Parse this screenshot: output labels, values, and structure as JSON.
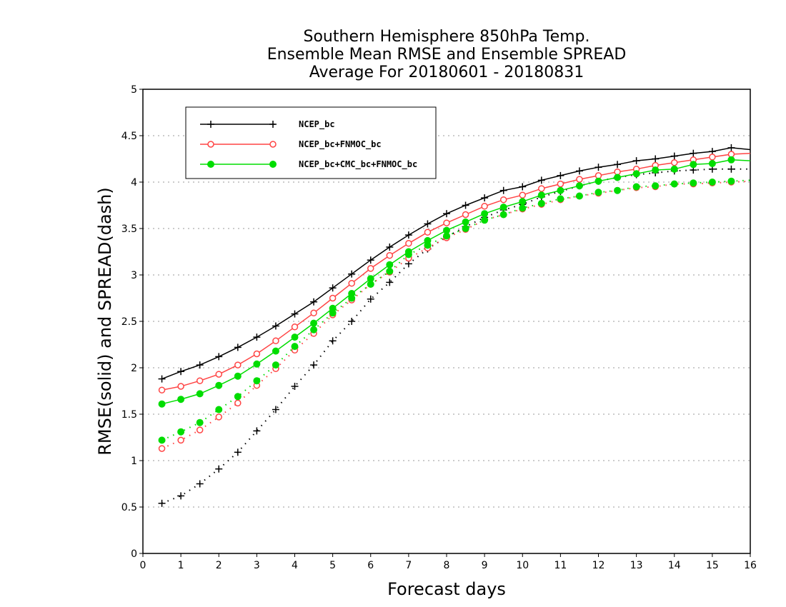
{
  "chart_data": {
    "type": "line",
    "title": [
      "Southern Hemisphere 850hPa Temp.",
      "Ensemble Mean RMSE and Ensemble SPREAD",
      "Average For 20180601 - 20180831"
    ],
    "xlabel": "Forecast days",
    "ylabel": "RMSE(solid) and SPREAD(dash)",
    "xlim": [
      0,
      16
    ],
    "ylim": [
      0,
      5
    ],
    "xticks": [
      "0",
      "1",
      "2",
      "3",
      "4",
      "5",
      "6",
      "7",
      "8",
      "9",
      "10",
      "11",
      "12",
      "13",
      "14",
      "15",
      "16"
    ],
    "yticks": [
      "0",
      "0.5",
      "1",
      "1.5",
      "2",
      "2.5",
      "3",
      "3.5",
      "4",
      "4.5",
      "5"
    ],
    "grid": "horizontal dotted",
    "legend_position": "top-left",
    "x": [
      0.5,
      1,
      1.5,
      2,
      2.5,
      3,
      3.5,
      4,
      4.5,
      5,
      5.5,
      6,
      6.5,
      7,
      7.5,
      8,
      8.5,
      9,
      9.5,
      10,
      10.5,
      11,
      11.5,
      12,
      12.5,
      13,
      13.5,
      14,
      14.5,
      15,
      15.5,
      16
    ],
    "series": [
      {
        "name": "NCEP_bc",
        "color": "#000000",
        "marker": "plus",
        "rmse": [
          1.88,
          1.96,
          2.03,
          2.12,
          2.22,
          2.33,
          2.45,
          2.58,
          2.71,
          2.86,
          3.01,
          3.16,
          3.3,
          3.43,
          3.55,
          3.66,
          3.75,
          3.83,
          3.91,
          3.95,
          4.02,
          4.07,
          4.12,
          4.16,
          4.19,
          4.23,
          4.25,
          4.28,
          4.31,
          4.33,
          4.37,
          4.35
        ],
        "spread": [
          0.54,
          0.62,
          0.75,
          0.91,
          1.09,
          1.32,
          1.55,
          1.8,
          2.03,
          2.29,
          2.5,
          2.74,
          2.92,
          3.12,
          3.28,
          3.41,
          3.52,
          3.62,
          3.7,
          3.76,
          3.84,
          3.9,
          3.96,
          4.01,
          4.05,
          4.08,
          4.1,
          4.12,
          4.13,
          4.14,
          4.14,
          4.14
        ]
      },
      {
        "name": "NCEP_bc+FNMOC_bc",
        "color": "#ff4444",
        "marker": "open-circle",
        "rmse": [
          1.76,
          1.8,
          1.86,
          1.93,
          2.03,
          2.15,
          2.29,
          2.44,
          2.59,
          2.75,
          2.91,
          3.07,
          3.21,
          3.34,
          3.46,
          3.56,
          3.65,
          3.74,
          3.81,
          3.86,
          3.93,
          3.98,
          4.03,
          4.07,
          4.11,
          4.14,
          4.18,
          4.21,
          4.24,
          4.27,
          4.3,
          4.31
        ],
        "spread": [
          1.13,
          1.22,
          1.33,
          1.47,
          1.62,
          1.81,
          1.99,
          2.19,
          2.37,
          2.57,
          2.73,
          2.9,
          3.03,
          3.18,
          3.29,
          3.4,
          3.49,
          3.59,
          3.65,
          3.71,
          3.76,
          3.81,
          3.85,
          3.88,
          3.91,
          3.94,
          3.95,
          3.98,
          3.98,
          3.99,
          4.0,
          4.01
        ]
      },
      {
        "name": "NCEP_bc+CMC_bc+FNMOC_bc",
        "color": "#00dd00",
        "marker": "filled-circle",
        "rmse": [
          1.61,
          1.66,
          1.72,
          1.81,
          1.91,
          2.04,
          2.18,
          2.33,
          2.48,
          2.64,
          2.8,
          2.96,
          3.11,
          3.25,
          3.37,
          3.48,
          3.57,
          3.66,
          3.73,
          3.79,
          3.86,
          3.91,
          3.96,
          4.01,
          4.05,
          4.09,
          4.13,
          4.14,
          4.19,
          4.2,
          4.24,
          4.23
        ],
        "spread": [
          1.22,
          1.31,
          1.41,
          1.55,
          1.69,
          1.86,
          2.03,
          2.23,
          2.41,
          2.59,
          2.75,
          2.9,
          3.04,
          3.22,
          3.32,
          3.42,
          3.5,
          3.59,
          3.65,
          3.72,
          3.77,
          3.82,
          3.85,
          3.89,
          3.91,
          3.95,
          3.96,
          3.98,
          3.99,
          4.0,
          4.01,
          4.02
        ]
      }
    ]
  }
}
